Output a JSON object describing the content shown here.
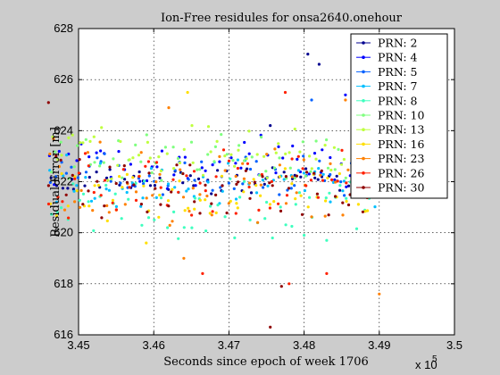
{
  "chart_data": {
    "type": "scatter",
    "title": "Ion-Free residules for onsa2640.onehour",
    "xlabel": "Seconds since epoch of week 1706",
    "ylabel": "Residual Error [m]",
    "x_multiplier_label": "x 10",
    "x_multiplier_exp": "5",
    "xlim": [
      3.45,
      3.5
    ],
    "ylim": [
      616,
      628
    ],
    "x_ticks": [
      "3.45",
      "3.46",
      "3.47",
      "3.48",
      "3.49",
      "3.5"
    ],
    "y_ticks": [
      "616",
      "618",
      "620",
      "622",
      "624",
      "626",
      "628"
    ],
    "grid": true,
    "legend_position": "top-right",
    "series": [
      {
        "name": "PRN: 2",
        "color": "#00008f",
        "mean": 622.0,
        "band": [
          621.6,
          622.5
        ],
        "outliers": [
          [
            3.4805,
            627.0
          ],
          [
            3.482,
            626.6
          ],
          [
            3.4755,
            624.2
          ]
        ]
      },
      {
        "name": "PRN: 4",
        "color": "#0000ff",
        "mean": 622.6,
        "band": [
          621.8,
          623.6
        ],
        "outliers": [
          [
            3.4875,
            626.5
          ],
          [
            3.4855,
            625.4
          ]
        ]
      },
      {
        "name": "PRN: 5",
        "color": "#0060ff",
        "mean": 622.3,
        "band": [
          621.4,
          623.0
        ],
        "outliers": [
          [
            3.481,
            625.2
          ]
        ]
      },
      {
        "name": "PRN: 7",
        "color": "#00bfff",
        "mean": 621.8,
        "band": [
          621.0,
          622.8
        ],
        "outliers": []
      },
      {
        "name": "PRN: 8",
        "color": "#3fffbf",
        "mean": 621.2,
        "band": [
          619.8,
          622.0
        ],
        "outliers": [
          [
            3.48,
            619.9
          ],
          [
            3.483,
            619.7
          ]
        ]
      },
      {
        "name": "PRN: 10",
        "color": "#7fff7f",
        "mean": 622.9,
        "band": [
          622.0,
          623.8
        ],
        "outliers": []
      },
      {
        "name": "PRN: 13",
        "color": "#bfff3f",
        "mean": 623.0,
        "band": [
          622.2,
          624.0
        ],
        "outliers": []
      },
      {
        "name": "PRN: 16",
        "color": "#ffdf00",
        "mean": 621.6,
        "band": [
          620.6,
          622.4
        ],
        "outliers": [
          [
            3.4645,
            625.5
          ],
          [
            3.459,
            619.6
          ]
        ]
      },
      {
        "name": "PRN: 23",
        "color": "#ff8000",
        "mean": 621.9,
        "band": [
          620.5,
          623.4
        ],
        "outliers": [
          [
            3.462,
            624.9
          ],
          [
            3.4855,
            625.2
          ],
          [
            3.464,
            619.0
          ],
          [
            3.49,
            617.6
          ]
        ]
      },
      {
        "name": "PRN: 26",
        "color": "#ff2000",
        "mean": 621.7,
        "band": [
          620.8,
          623.0
        ],
        "outliers": [
          [
            3.4775,
            625.5
          ],
          [
            3.478,
            618.0
          ],
          [
            3.4665,
            618.4
          ],
          [
            3.483,
            618.4
          ]
        ]
      },
      {
        "name": "PRN: 30",
        "color": "#8f0000",
        "mean": 621.6,
        "band": [
          620.6,
          622.8
        ],
        "outliers": [
          [
            3.446,
            625.1
          ],
          [
            3.4755,
            616.3
          ],
          [
            3.477,
            617.9
          ]
        ]
      }
    ],
    "x_range_start": 3.4459,
    "x_range_end": 3.4905
  }
}
